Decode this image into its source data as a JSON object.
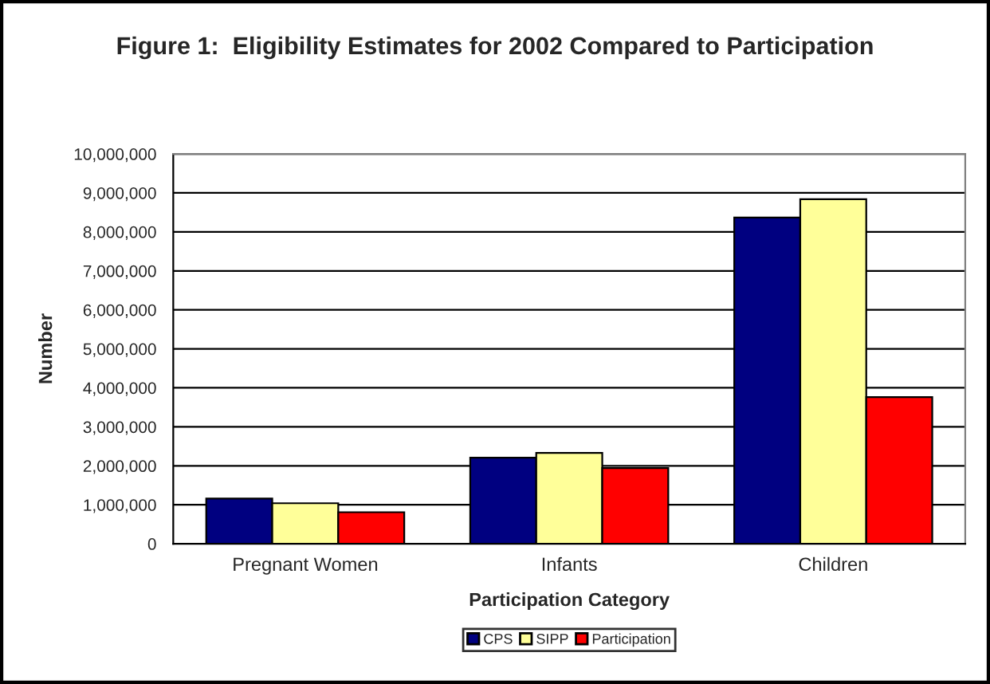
{
  "chart_data": {
    "type": "bar",
    "title": "Figure 1:  Eligibility Estimates for 2002 Compared to Participation",
    "xlabel": "Participation Category",
    "ylabel": "Number",
    "categories": [
      "Pregnant Women",
      "Infants",
      "Children"
    ],
    "series": [
      {
        "name": "CPS",
        "color": "#000080",
        "values": [
          1160000,
          2210000,
          8370000
        ]
      },
      {
        "name": "SIPP",
        "color": "#ffff99",
        "values": [
          1040000,
          2330000,
          8840000
        ]
      },
      {
        "name": "Participation",
        "color": "#ff0000",
        "values": [
          810000,
          1940000,
          3760000
        ]
      }
    ],
    "ylim": [
      0,
      10000000
    ],
    "yticks": [
      {
        "value": 0,
        "label": "0"
      },
      {
        "value": 1000000,
        "label": "1,000,000"
      },
      {
        "value": 2000000,
        "label": "2,000,000"
      },
      {
        "value": 3000000,
        "label": "3,000,000"
      },
      {
        "value": 4000000,
        "label": "4,000,000"
      },
      {
        "value": 5000000,
        "label": "5,000,000"
      },
      {
        "value": 6000000,
        "label": "6,000,000"
      },
      {
        "value": 7000000,
        "label": "7,000,000"
      },
      {
        "value": 8000000,
        "label": "8,000,000"
      },
      {
        "value": 9000000,
        "label": "9,000,000"
      },
      {
        "value": 10000000,
        "label": "10,000,000"
      }
    ],
    "grid": "y",
    "legend": "bottom"
  }
}
